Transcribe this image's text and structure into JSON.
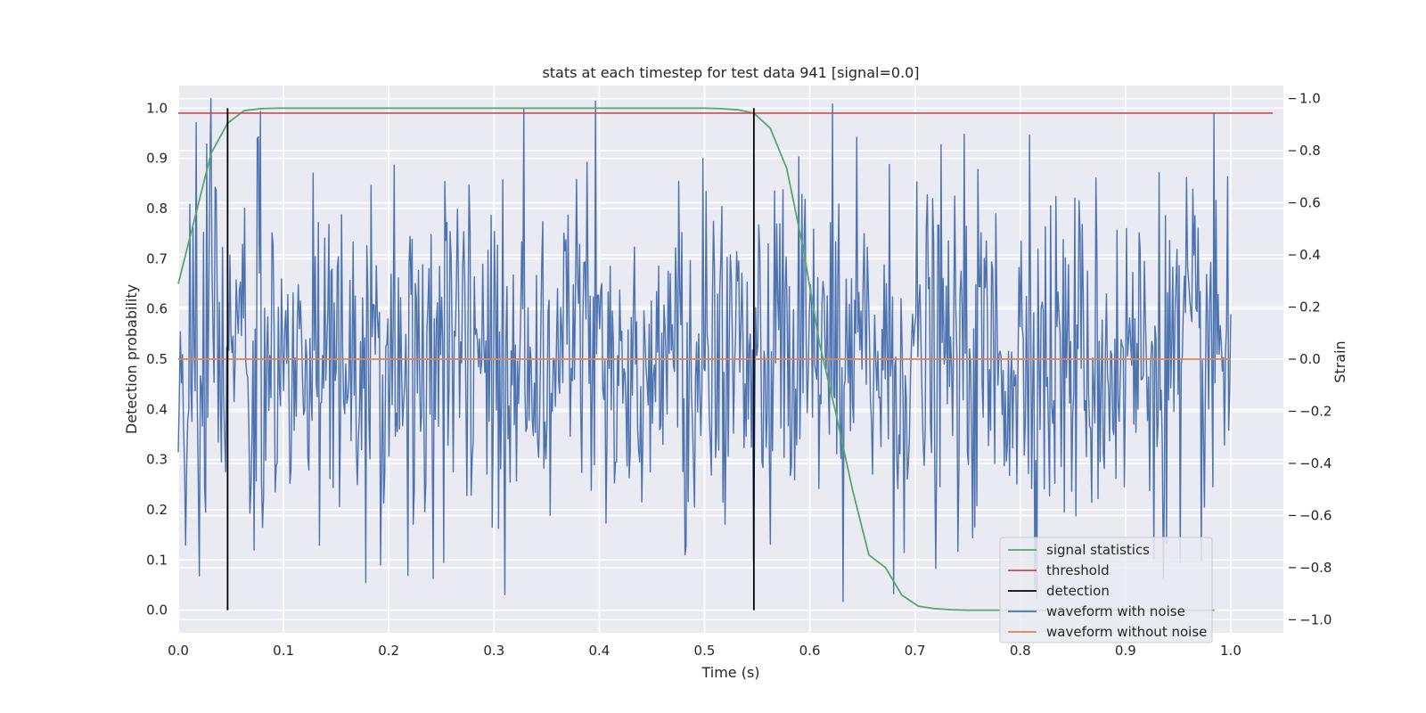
{
  "chart_data": {
    "type": "line",
    "title": "stats at each timestep for test data 941 [signal=0.0]",
    "xlabel": "Time (s)",
    "ylabel_left": "Detection probability",
    "ylabel_right": "Strain",
    "xlim": [
      0.0,
      1.05
    ],
    "ylim_left": [
      -0.045,
      1.045
    ],
    "ylim_right": [
      -1.05,
      1.05
    ],
    "x_ticks": [
      "0.0",
      "0.1",
      "0.2",
      "0.3",
      "0.4",
      "0.5",
      "0.6",
      "0.7",
      "0.8",
      "0.9",
      "1.0"
    ],
    "y_left_ticks": [
      "0.0",
      "0.1",
      "0.2",
      "0.3",
      "0.4",
      "0.5",
      "0.6",
      "0.7",
      "0.8",
      "0.9",
      "1.0"
    ],
    "y_right_ticks": [
      "−1.0",
      "−0.8",
      "−0.6",
      "−0.4",
      "−0.2",
      "0.0",
      "0.2",
      "0.4",
      "0.6",
      "0.8",
      "1.0"
    ],
    "grid": true,
    "legend_position": "lower-right",
    "series": [
      {
        "name": "signal statistics",
        "axis": "left",
        "color": "#55a868",
        "x": [
          0.0,
          0.0156,
          0.0312,
          0.0469,
          0.0625,
          0.0781,
          0.0938,
          0.1094,
          0.125,
          0.1406,
          0.1562,
          0.1719,
          0.1875,
          0.2031,
          0.2188,
          0.2344,
          0.25,
          0.2656,
          0.2812,
          0.2969,
          0.3125,
          0.3281,
          0.3438,
          0.3594,
          0.375,
          0.3906,
          0.4062,
          0.4219,
          0.4375,
          0.4531,
          0.4688,
          0.4844,
          0.5,
          0.5156,
          0.5312,
          0.5469,
          0.5625,
          0.5781,
          0.5938,
          0.6094,
          0.625,
          0.6406,
          0.6562,
          0.6719,
          0.6875,
          0.7031,
          0.7188,
          0.7344,
          0.75,
          0.7656,
          0.7812,
          0.7969,
          0.8125,
          0.8281,
          0.8438,
          0.8594,
          0.875,
          0.8906,
          0.9062,
          0.9219,
          0.9375,
          0.9531,
          0.9688,
          0.9844
        ],
        "y": [
          0.65,
          0.78,
          0.91,
          0.97,
          0.995,
          0.999,
          1.0,
          1.0,
          1.0,
          1.0,
          1.0,
          1.0,
          1.0,
          1.0,
          1.0,
          1.0,
          1.0,
          1.0,
          1.0,
          1.0,
          1.0,
          1.0,
          1.0,
          1.0,
          1.0,
          1.0,
          1.0,
          1.0,
          1.0,
          1.0,
          1.0,
          1.0,
          1.0,
          0.999,
          0.997,
          0.99,
          0.96,
          0.88,
          0.72,
          0.53,
          0.39,
          0.24,
          0.11,
          0.085,
          0.03,
          0.008,
          0.003,
          0.001,
          0.0,
          0.0,
          0.0,
          0.0,
          0.0,
          0.0,
          0.0,
          0.0,
          0.0,
          0.0,
          0.0,
          0.0,
          0.0,
          0.0,
          0.0,
          0.0
        ]
      },
      {
        "name": "threshold",
        "axis": "left",
        "color": "#c44e52",
        "x": [
          0.0,
          1.04
        ],
        "y": [
          0.99,
          0.99
        ]
      },
      {
        "name": "detection",
        "axis": "left",
        "color": "#000000",
        "x": [
          0.0469,
          0.5469
        ],
        "y_range": [
          0.0,
          1.0
        ]
      },
      {
        "name": "waveform with noise",
        "axis": "right",
        "color": "#4c72b0",
        "x_range": [
          0.0,
          1.0
        ],
        "n_points": 1000,
        "approx_std": 0.33,
        "approx_min": -0.92,
        "approx_max": 1.0,
        "highlight_peaks": [
          {
            "x": 0.031,
            "y": 1.0
          },
          {
            "x": 0.035,
            "y": 0.66
          },
          {
            "x": 0.078,
            "y": 0.95
          },
          {
            "x": 0.328,
            "y": 0.96
          },
          {
            "x": 0.396,
            "y": 0.99
          },
          {
            "x": 0.498,
            "y": 0.77
          },
          {
            "x": 0.809,
            "y": 0.86
          },
          {
            "x": 0.997,
            "y": 0.7
          },
          {
            "x": 0.218,
            "y": -0.83
          },
          {
            "x": 0.632,
            "y": -0.93
          },
          {
            "x": 0.68,
            "y": -0.9
          },
          {
            "x": 0.952,
            "y": -0.78
          },
          {
            "x": 0.192,
            "y": -0.79
          },
          {
            "x": 0.252,
            "y": -0.78
          }
        ]
      },
      {
        "name": "waveform without noise",
        "axis": "right",
        "color": "#dd8452",
        "x": [
          0.0,
          1.0
        ],
        "y": [
          0.0,
          0.0
        ]
      }
    ]
  }
}
